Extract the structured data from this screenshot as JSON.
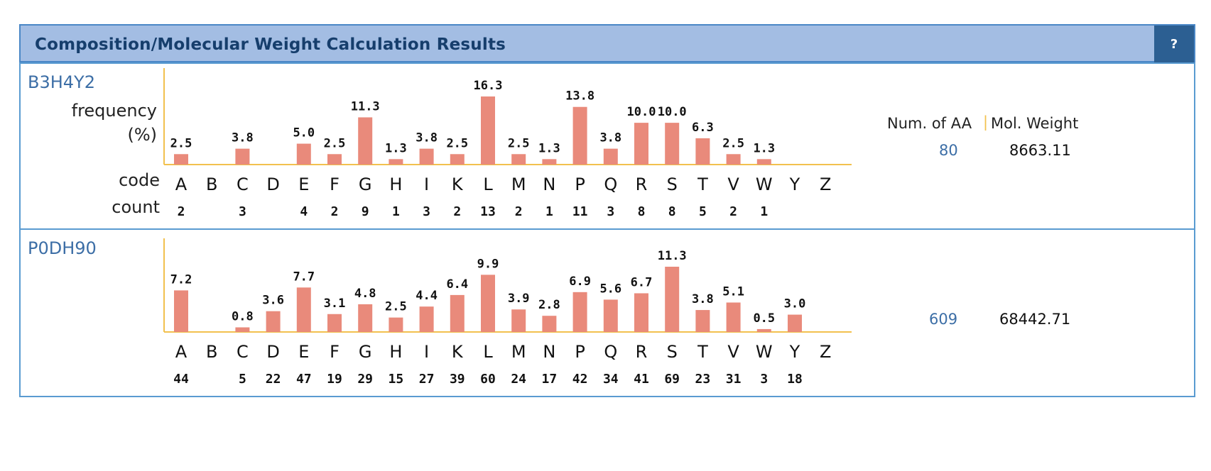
{
  "header": {
    "title": "Composition/Molecular Weight Calculation Results",
    "help_label": "?"
  },
  "labels": {
    "frequency": "frequency",
    "percent": "(%)",
    "code": "code",
    "count": "count",
    "num_aa_head": "Num. of AA",
    "mol_weight_head": "Mol. Weight",
    "separator": "|"
  },
  "colors": {
    "bar": "#e98a7b",
    "axis": "#f2c14e",
    "header_bg": "#a3bde3",
    "link": "#3c6ea6"
  },
  "chart_data": [
    {
      "type": "bar",
      "title": "B3H4Y2",
      "categories": [
        "A",
        "B",
        "C",
        "D",
        "E",
        "F",
        "G",
        "H",
        "I",
        "K",
        "L",
        "M",
        "N",
        "P",
        "Q",
        "R",
        "S",
        "T",
        "V",
        "W",
        "Y",
        "Z"
      ],
      "values": [
        2.5,
        null,
        3.8,
        null,
        5.0,
        2.5,
        11.3,
        1.3,
        3.8,
        2.5,
        16.3,
        2.5,
        1.3,
        13.8,
        3.8,
        10.0,
        10.0,
        6.3,
        2.5,
        1.3,
        null,
        null
      ],
      "value_labels": [
        "2.5",
        "",
        "3.8",
        "",
        "5.0",
        "2.5",
        "11.3",
        "1.3",
        "3.8",
        "2.5",
        "16.3",
        "2.5",
        "1.3",
        "13.8",
        "3.8",
        "10.0",
        "10.0",
        "6.3",
        "2.5",
        "1.3",
        "",
        ""
      ],
      "counts": [
        "2",
        "",
        "3",
        "",
        "4",
        "2",
        "9",
        "1",
        "3",
        "2",
        "13",
        "2",
        "1",
        "11",
        "3",
        "8",
        "8",
        "5",
        "2",
        "1",
        "",
        ""
      ],
      "num_aa": "80",
      "mol_weight": "8663.11",
      "ylabel": "frequency (%)",
      "ylim": [
        0,
        16.3
      ]
    },
    {
      "type": "bar",
      "title": "P0DH90",
      "categories": [
        "A",
        "B",
        "C",
        "D",
        "E",
        "F",
        "G",
        "H",
        "I",
        "K",
        "L",
        "M",
        "N",
        "P",
        "Q",
        "R",
        "S",
        "T",
        "V",
        "W",
        "Y",
        "Z"
      ],
      "values": [
        7.2,
        null,
        0.8,
        3.6,
        7.7,
        3.1,
        4.8,
        2.5,
        4.4,
        6.4,
        9.9,
        3.9,
        2.8,
        6.9,
        5.6,
        6.7,
        11.3,
        3.8,
        5.1,
        0.5,
        3.0,
        null
      ],
      "value_labels": [
        "7.2",
        "",
        "0.8",
        "3.6",
        "7.7",
        "3.1",
        "4.8",
        "2.5",
        "4.4",
        "6.4",
        "9.9",
        "3.9",
        "2.8",
        "6.9",
        "5.6",
        "6.7",
        "11.3",
        "3.8",
        "5.1",
        "0.5",
        "3.0",
        ""
      ],
      "counts": [
        "44",
        "",
        "5",
        "22",
        "47",
        "19",
        "29",
        "15",
        "27",
        "39",
        "60",
        "24",
        "17",
        "42",
        "34",
        "41",
        "69",
        "23",
        "31",
        "3",
        "18",
        ""
      ],
      "num_aa": "609",
      "mol_weight": "68442.71",
      "ylim": [
        0,
        11.3
      ]
    }
  ]
}
